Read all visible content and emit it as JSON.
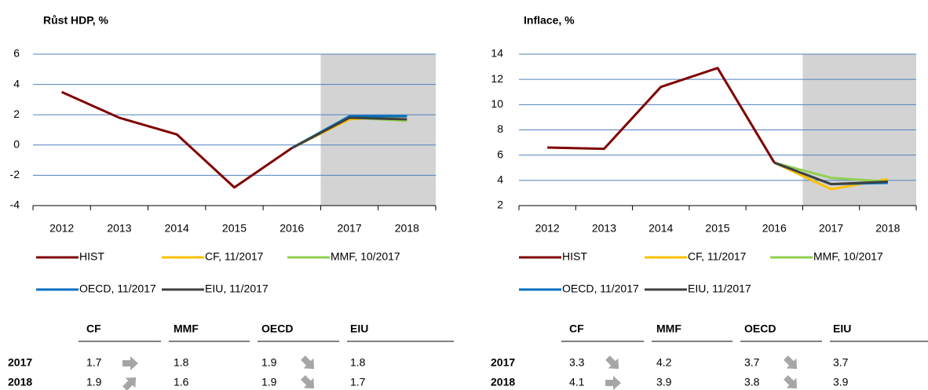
{
  "chart_data": [
    {
      "type": "line",
      "title": "Růst HDP, %",
      "categories": [
        "2012",
        "2013",
        "2014",
        "2015",
        "2016",
        "2017",
        "2018"
      ],
      "series": [
        {
          "name": "HIST",
          "color": "#7f0000",
          "values": [
            3.5,
            1.8,
            0.7,
            -2.8,
            -0.2,
            null,
            null
          ]
        },
        {
          "name": "CF, 11/2017",
          "color": "#ffc000",
          "values": [
            null,
            null,
            null,
            null,
            -0.2,
            1.7,
            1.9
          ]
        },
        {
          "name": "MMF, 10/2017",
          "color": "#92d050",
          "values": [
            null,
            null,
            null,
            null,
            -0.2,
            1.8,
            1.6
          ]
        },
        {
          "name": "OECD, 11/2017",
          "color": "#0070c0",
          "values": [
            null,
            null,
            null,
            null,
            -0.2,
            1.9,
            1.9
          ]
        },
        {
          "name": "EIU, 11/2017",
          "color": "#404040",
          "values": [
            null,
            null,
            null,
            null,
            -0.2,
            1.8,
            1.7
          ]
        }
      ],
      "ylim": [
        -4,
        6
      ],
      "yticks": [
        -4,
        -2,
        0,
        2,
        4,
        6
      ],
      "grid": true
    },
    {
      "type": "line",
      "title": "Inflace, %",
      "categories": [
        "2012",
        "2013",
        "2014",
        "2015",
        "2016",
        "2017",
        "2018"
      ],
      "series": [
        {
          "name": "HIST",
          "color": "#7f0000",
          "values": [
            6.6,
            6.5,
            11.4,
            12.9,
            5.4,
            null,
            null
          ]
        },
        {
          "name": "CF, 11/2017",
          "color": "#ffc000",
          "values": [
            null,
            null,
            null,
            null,
            5.4,
            3.3,
            4.1
          ]
        },
        {
          "name": "MMF, 10/2017",
          "color": "#92d050",
          "values": [
            null,
            null,
            null,
            null,
            5.4,
            4.2,
            3.9
          ]
        },
        {
          "name": "OECD, 11/2017",
          "color": "#0070c0",
          "values": [
            null,
            null,
            null,
            null,
            5.4,
            3.7,
            3.8
          ]
        },
        {
          "name": "EIU, 11/2017",
          "color": "#404040",
          "values": [
            null,
            null,
            null,
            null,
            5.4,
            3.7,
            3.9
          ]
        }
      ],
      "ylim": [
        2,
        14
      ],
      "yticks": [
        2,
        4,
        6,
        8,
        10,
        12,
        14
      ],
      "grid": true
    }
  ],
  "tables": [
    {
      "columns": [
        "CF",
        "MMF",
        "OECD",
        "EIU"
      ],
      "rows": [
        {
          "label": "2017",
          "values": [
            1.7,
            1.8,
            1.9,
            1.8
          ]
        },
        {
          "label": "2018",
          "values": [
            1.9,
            1.6,
            1.9,
            1.7
          ]
        }
      ]
    },
    {
      "columns": [
        "CF",
        "MMF",
        "OECD",
        "EIU"
      ],
      "rows": [
        {
          "label": "2017",
          "values": [
            3.3,
            4.2,
            3.7,
            3.7
          ]
        },
        {
          "label": "2018",
          "values": [
            4.1,
            3.9,
            3.8,
            3.9
          ]
        }
      ]
    }
  ]
}
